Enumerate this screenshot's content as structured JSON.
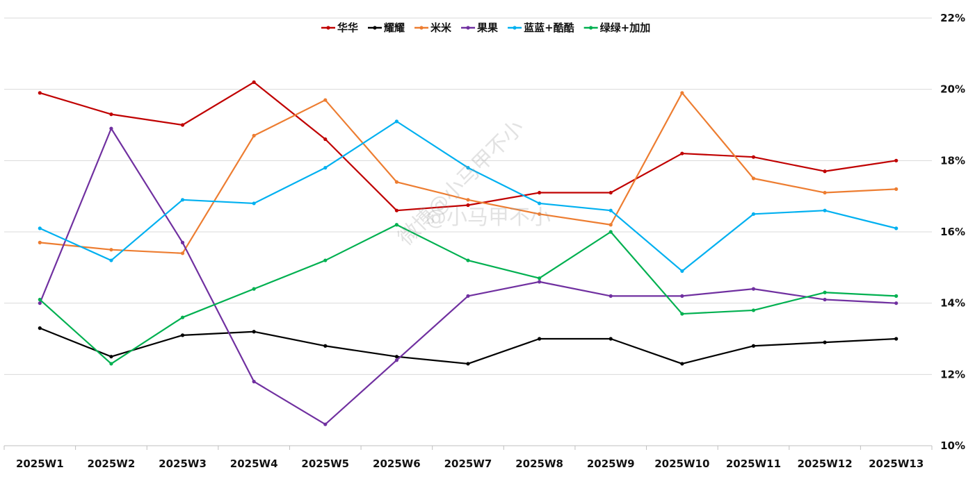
{
  "chart_data": {
    "type": "line",
    "categories": [
      "2025W1",
      "2025W2",
      "2025W3",
      "2025W4",
      "2025W5",
      "2025W6",
      "2025W7",
      "2025W8",
      "2025W9",
      "2025W10",
      "2025W11",
      "2025W12",
      "2025W13"
    ],
    "ylim": [
      10,
      22
    ],
    "yticks": [
      10,
      12,
      14,
      16,
      18,
      20,
      22
    ],
    "ytick_labels": [
      "10%",
      "12%",
      "14%",
      "16%",
      "18%",
      "20%",
      "22%"
    ],
    "y_axis_side": "right",
    "grid": true,
    "legend_position": "top-center",
    "series": [
      {
        "name": "华华",
        "color": "#C00000",
        "values": [
          19.9,
          19.3,
          19.0,
          20.2,
          18.6,
          16.6,
          16.75,
          17.1,
          17.1,
          18.2,
          18.1,
          17.7,
          18.0
        ]
      },
      {
        "name": "耀耀",
        "color": "#000000",
        "values": [
          13.3,
          12.5,
          13.1,
          13.2,
          12.8,
          12.5,
          12.3,
          13.0,
          13.0,
          12.3,
          12.8,
          12.9,
          13.0
        ]
      },
      {
        "name": "米米",
        "color": "#ED7D31",
        "values": [
          15.7,
          15.5,
          15.4,
          18.7,
          19.7,
          17.4,
          16.9,
          16.5,
          16.2,
          19.9,
          17.5,
          17.1,
          17.2
        ]
      },
      {
        "name": "果果",
        "color": "#7030A0",
        "values": [
          14.0,
          18.9,
          15.7,
          11.8,
          10.6,
          12.4,
          14.2,
          14.6,
          14.2,
          14.2,
          14.4,
          14.1,
          14.0
        ]
      },
      {
        "name": "蓝蓝+酷酷",
        "color": "#00B0F0",
        "values": [
          16.1,
          15.2,
          16.9,
          16.8,
          17.8,
          19.1,
          17.8,
          16.8,
          16.6,
          14.9,
          16.5,
          16.6,
          16.1
        ]
      },
      {
        "name": "绿绿+加加",
        "color": "#00B050",
        "values": [
          14.1,
          12.3,
          13.6,
          14.4,
          15.2,
          16.2,
          15.2,
          14.7,
          16.0,
          13.7,
          13.8,
          14.3,
          14.2
        ]
      }
    ]
  },
  "watermark": {
    "text_diagonal": "微博@小马甲不小",
    "text_horizontal": "@小马甲不小"
  }
}
